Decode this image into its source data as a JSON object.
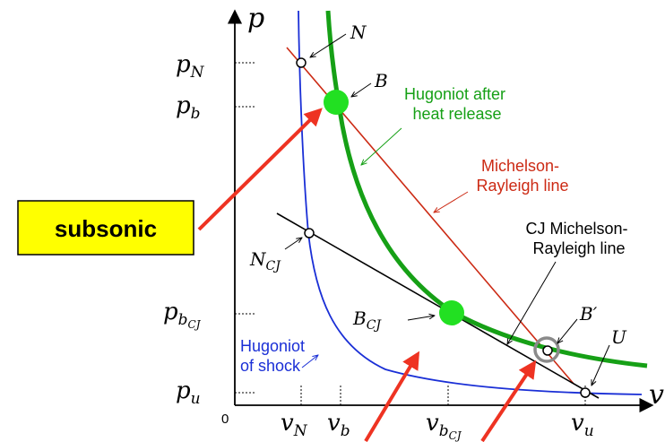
{
  "axes": {
    "x_symbol": "v",
    "y_symbol": "p",
    "origin": "0"
  },
  "y_ticks": {
    "pN": {
      "base": "p",
      "sub": "N"
    },
    "pb": {
      "base": "p",
      "sub": "b"
    },
    "pbCJ": {
      "base": "p",
      "sub": "b",
      "subsub": "CJ"
    },
    "pu": {
      "base": "p",
      "sub": "u"
    }
  },
  "x_ticks": {
    "vN": {
      "base": "v",
      "sub": "N"
    },
    "vb": {
      "base": "v",
      "sub": "b"
    },
    "vbCJ": {
      "base": "v",
      "sub": "b",
      "subsub": "CJ"
    },
    "vu": {
      "base": "v",
      "sub": "u"
    }
  },
  "point_labels": {
    "N": "N",
    "B": "B",
    "NCJ": {
      "base": "N",
      "sub": "CJ"
    },
    "BCJ": {
      "base": "B",
      "sub": "CJ"
    },
    "Bprime": "B′",
    "U": "U"
  },
  "curve_labels": {
    "hugoniot_heat_1": "Hugoniot after",
    "hugoniot_heat_2": "heat release",
    "michelson_1": "Michelson-",
    "michelson_2": "Rayleigh line",
    "cj_1": "CJ Michelson-",
    "cj_2": "Rayleigh line",
    "hugoniot_shock_1": "Hugoniot",
    "hugoniot_shock_2": "of shock"
  },
  "callout": {
    "label": "subsonic"
  },
  "colors": {
    "shock_hugoniot": "#1a2fd6",
    "heat_hugoniot": "#16a016",
    "michelson_rayleigh": "#cc2a14",
    "cj_line": "#000000",
    "burned_points": "#22e022",
    "callout_fill": "#ffff00",
    "arrows": "#ee3322",
    "bprime_ring": "#8a8a8a"
  }
}
